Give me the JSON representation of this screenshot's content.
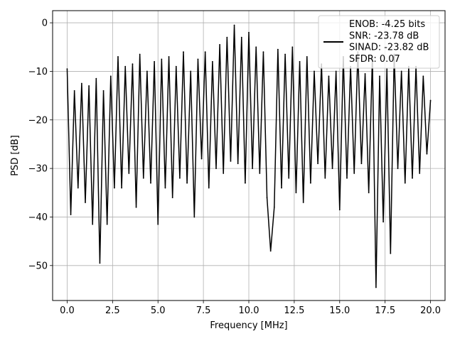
{
  "chart_data": {
    "type": "line",
    "xlabel": "Frequency [MHz]",
    "ylabel": "PSD [dB]",
    "xlim": [
      -0.8,
      20.8
    ],
    "ylim": [
      -57.2,
      2.5
    ],
    "grid": true,
    "xticks": [
      0.0,
      2.5,
      5.0,
      7.5,
      10.0,
      12.5,
      15.0,
      17.5,
      20.0
    ],
    "xtick_labels": [
      "0.0",
      "2.5",
      "5.0",
      "7.5",
      "10.0",
      "12.5",
      "15.0",
      "17.5",
      "20.0"
    ],
    "yticks": [
      0,
      -10,
      -20,
      -30,
      -40,
      -50
    ],
    "ytick_labels": [
      "0",
      "−10",
      "−20",
      "−30",
      "−40",
      "−50"
    ],
    "legend": {
      "placement": "top-right",
      "entries": [
        "ENOB: -4.25 bits",
        "SNR: -23.78 dB",
        "SINAD: -23.82 dB",
        "SFDR: 0.07"
      ]
    },
    "series": [
      {
        "color": "#000000",
        "x": [
          0.0,
          0.2,
          0.4,
          0.6,
          0.8,
          1.0,
          1.2,
          1.4,
          1.6,
          1.8,
          2.0,
          2.2,
          2.4,
          2.6,
          2.8,
          3.0,
          3.2,
          3.4,
          3.6,
          3.8,
          4.0,
          4.2,
          4.4,
          4.6,
          4.8,
          5.0,
          5.2,
          5.4,
          5.6,
          5.8,
          6.0,
          6.2,
          6.4,
          6.6,
          6.8,
          7.0,
          7.2,
          7.4,
          7.6,
          7.8,
          8.0,
          8.2,
          8.4,
          8.6,
          8.8,
          9.0,
          9.2,
          9.4,
          9.6,
          9.8,
          10.0,
          10.2,
          10.4,
          10.6,
          10.8,
          11.0,
          11.2,
          11.4,
          11.6,
          11.8,
          12.0,
          12.2,
          12.4,
          12.6,
          12.8,
          13.0,
          13.2,
          13.4,
          13.6,
          13.8,
          14.0,
          14.2,
          14.4,
          14.6,
          14.8,
          15.0,
          15.2,
          15.4,
          15.6,
          15.8,
          16.0,
          16.2,
          16.4,
          16.6,
          16.8,
          17.0,
          17.2,
          17.4,
          17.6,
          17.8,
          18.0,
          18.2,
          18.4,
          18.6,
          18.8,
          19.0,
          19.2,
          19.4,
          19.6,
          19.8,
          20.0
        ],
        "y": [
          -9.5,
          -39.5,
          -14,
          -34,
          -12.5,
          -37,
          -13,
          -41.5,
          -11.5,
          -49.5,
          -14,
          -41.5,
          -11,
          -34,
          -7,
          -34,
          -9,
          -31,
          -8.5,
          -38,
          -6.5,
          -32,
          -10,
          -33,
          -8,
          -41.5,
          -7.5,
          -34,
          -7,
          -36,
          -9,
          -32,
          -6,
          -33,
          -10,
          -40,
          -7.5,
          -28,
          -6,
          -34,
          -8,
          -30,
          -4.5,
          -31,
          -3,
          -28.5,
          -0.5,
          -29,
          -3,
          -33,
          -2,
          -30,
          -5,
          -31,
          -6,
          -36,
          -47,
          -38,
          -5.5,
          -34,
          -6.5,
          -32,
          -5,
          -35,
          -8,
          -37,
          -7,
          -33,
          -10,
          -29,
          -8.5,
          -32,
          -11,
          -30,
          -10,
          -38.5,
          -7,
          -32,
          -9,
          -31,
          -6,
          -29,
          -10.5,
          -35,
          -7,
          -54.5,
          -11,
          -41,
          -9.5,
          -47.5,
          -6.5,
          -30,
          -10,
          -33,
          -9,
          -32,
          -9,
          -31,
          -11,
          -27,
          -16
        ]
      }
    ]
  }
}
